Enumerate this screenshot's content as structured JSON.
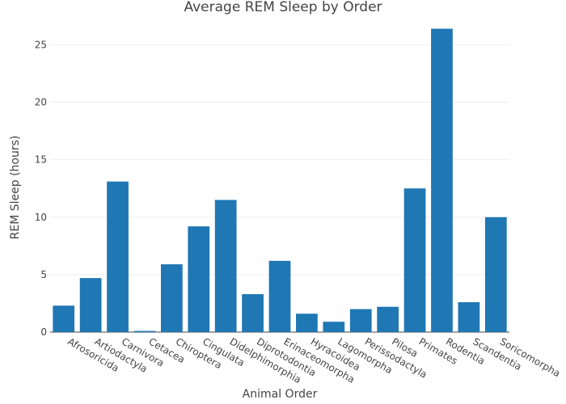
{
  "colors": {
    "bar": "#1f77b4",
    "grid": "#eeeeee",
    "text": "#444444",
    "background": "#ffffff"
  },
  "chart_data": {
    "type": "bar",
    "title": "Average REM Sleep by Order",
    "xlabel": "Animal Order",
    "ylabel": "REM Sleep (hours)",
    "ylim": [
      0,
      27
    ],
    "yticks": [
      0,
      5,
      10,
      15,
      20,
      25
    ],
    "grid": true,
    "legend": "none",
    "categories": [
      "Afrosoricida",
      "Artiodactyla",
      "Carnivora",
      "Cetacea",
      "Chiroptera",
      "Cingulata",
      "Didelphimorphia",
      "Diprotodontia",
      "Erinaceomorpha",
      "Hyracoidea",
      "Lagomorpha",
      "Perissodactyla",
      "Pilosa",
      "Primates",
      "Rodentia",
      "Scandentia",
      "Soricomorpha"
    ],
    "values": [
      2.3,
      4.7,
      13.1,
      0.1,
      5.9,
      9.2,
      11.5,
      3.3,
      6.2,
      1.6,
      0.9,
      2.0,
      2.2,
      12.5,
      26.4,
      2.6,
      10.0
    ]
  }
}
